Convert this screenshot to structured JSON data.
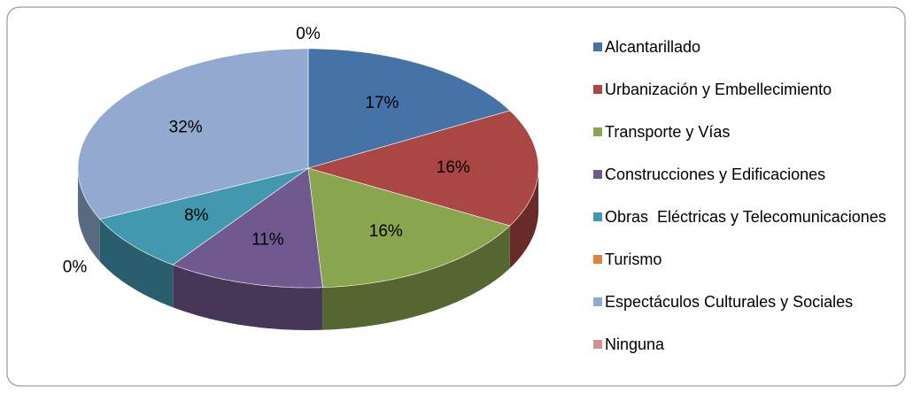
{
  "chart_data": {
    "type": "pie3d",
    "categories": [
      "Alcantarillado",
      "Urbanización y Embellecimiento",
      "Transporte y Vías",
      "Construcciones y Edificaciones",
      "Obras  Eléctricas y Telecomunicaciones",
      "Turismo",
      "Espectáculos Culturales y Sociales",
      "Ninguna"
    ],
    "values": [
      17,
      16,
      16,
      11,
      8,
      0,
      32,
      0
    ],
    "value_labels": [
      "17%",
      "16%",
      "16%",
      "11%",
      "8%",
      "0%",
      "32%",
      "0%"
    ],
    "colors": [
      "#4572a7",
      "#aa4643",
      "#89a54e",
      "#71588f",
      "#4198af",
      "#db843d",
      "#93a9cf",
      "#d19392"
    ],
    "legend": "right"
  }
}
